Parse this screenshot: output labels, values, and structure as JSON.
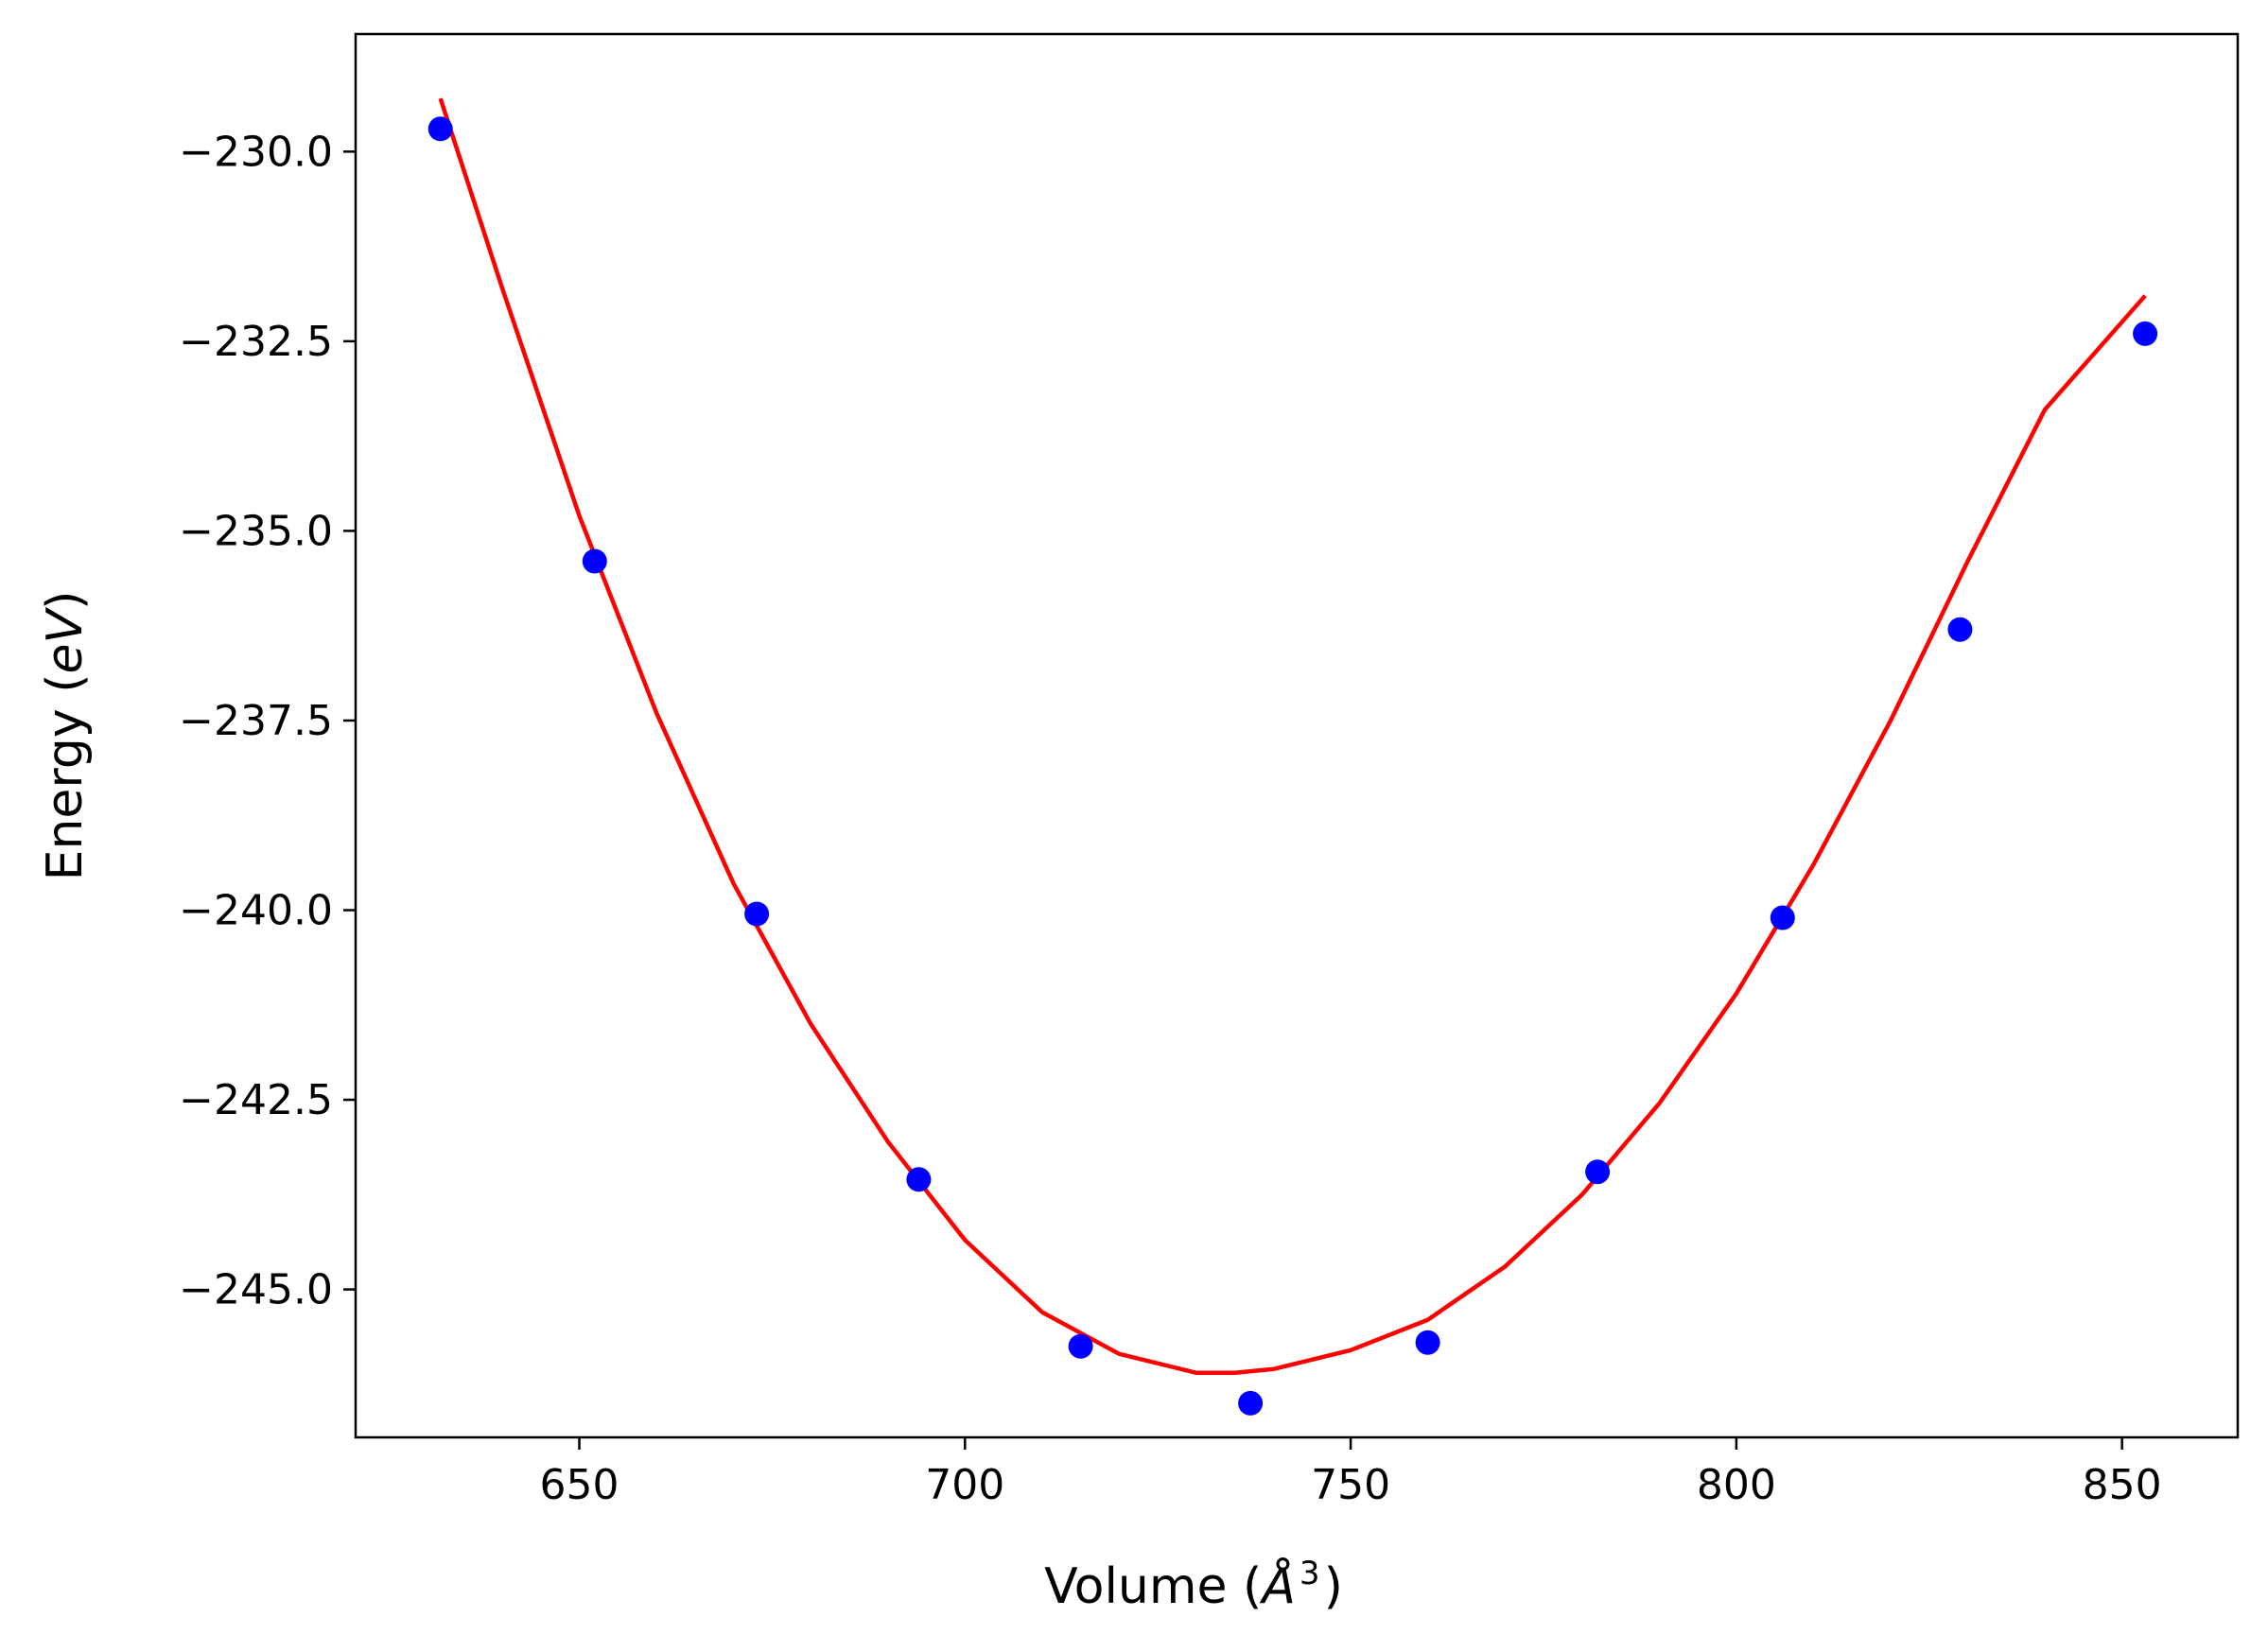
{
  "chart_data": {
    "type": "scatter",
    "xlabel": "Volume (",
    "xlabel_symbol": "Å",
    "xlabel_exponent": "3",
    "xlabel_close": ")",
    "ylabel": "Energy (",
    "ylabel_unit": "eV",
    "ylabel_close": ")",
    "xlim": [
      621,
      865
    ],
    "ylim": [
      -246.95,
      -228.45
    ],
    "xticks": [
      650,
      700,
      750,
      800,
      850
    ],
    "xtick_labels": [
      "650",
      "700",
      "750",
      "800",
      "850"
    ],
    "yticks": [
      -230.0,
      -232.5,
      -235.0,
      -237.5,
      -240.0,
      -242.5,
      -245.0
    ],
    "ytick_labels": [
      "−230.0",
      "−232.5",
      "−235.0",
      "−237.5",
      "−240.0",
      "−242.5",
      "−245.0"
    ],
    "grid": false,
    "series": [
      {
        "kind": "scatter",
        "color": "#0000ff",
        "x": [
          632,
          652,
          673,
          694,
          715,
          737,
          760,
          782,
          806,
          829,
          853
        ],
        "y": [
          -229.7,
          -235.4,
          -240.05,
          -243.55,
          -245.75,
          -246.5,
          -245.7,
          -243.45,
          -240.1,
          -236.3,
          -232.4
        ]
      },
      {
        "kind": "line",
        "color": "#ff0000",
        "x": [
          632,
          640,
          650,
          660,
          670,
          680,
          690,
          700,
          710,
          720,
          730,
          735,
          740,
          750,
          760,
          770,
          780,
          790,
          800,
          810,
          820,
          830,
          840,
          853
        ],
        "y": [
          -229.3,
          -231.8,
          -234.8,
          -237.4,
          -239.65,
          -241.5,
          -243.05,
          -244.35,
          -245.3,
          -245.85,
          -246.1,
          -246.1,
          -246.05,
          -245.8,
          -245.4,
          -244.7,
          -243.75,
          -242.55,
          -241.1,
          -239.4,
          -237.5,
          -235.4,
          -233.4,
          -231.9
        ]
      }
    ]
  }
}
